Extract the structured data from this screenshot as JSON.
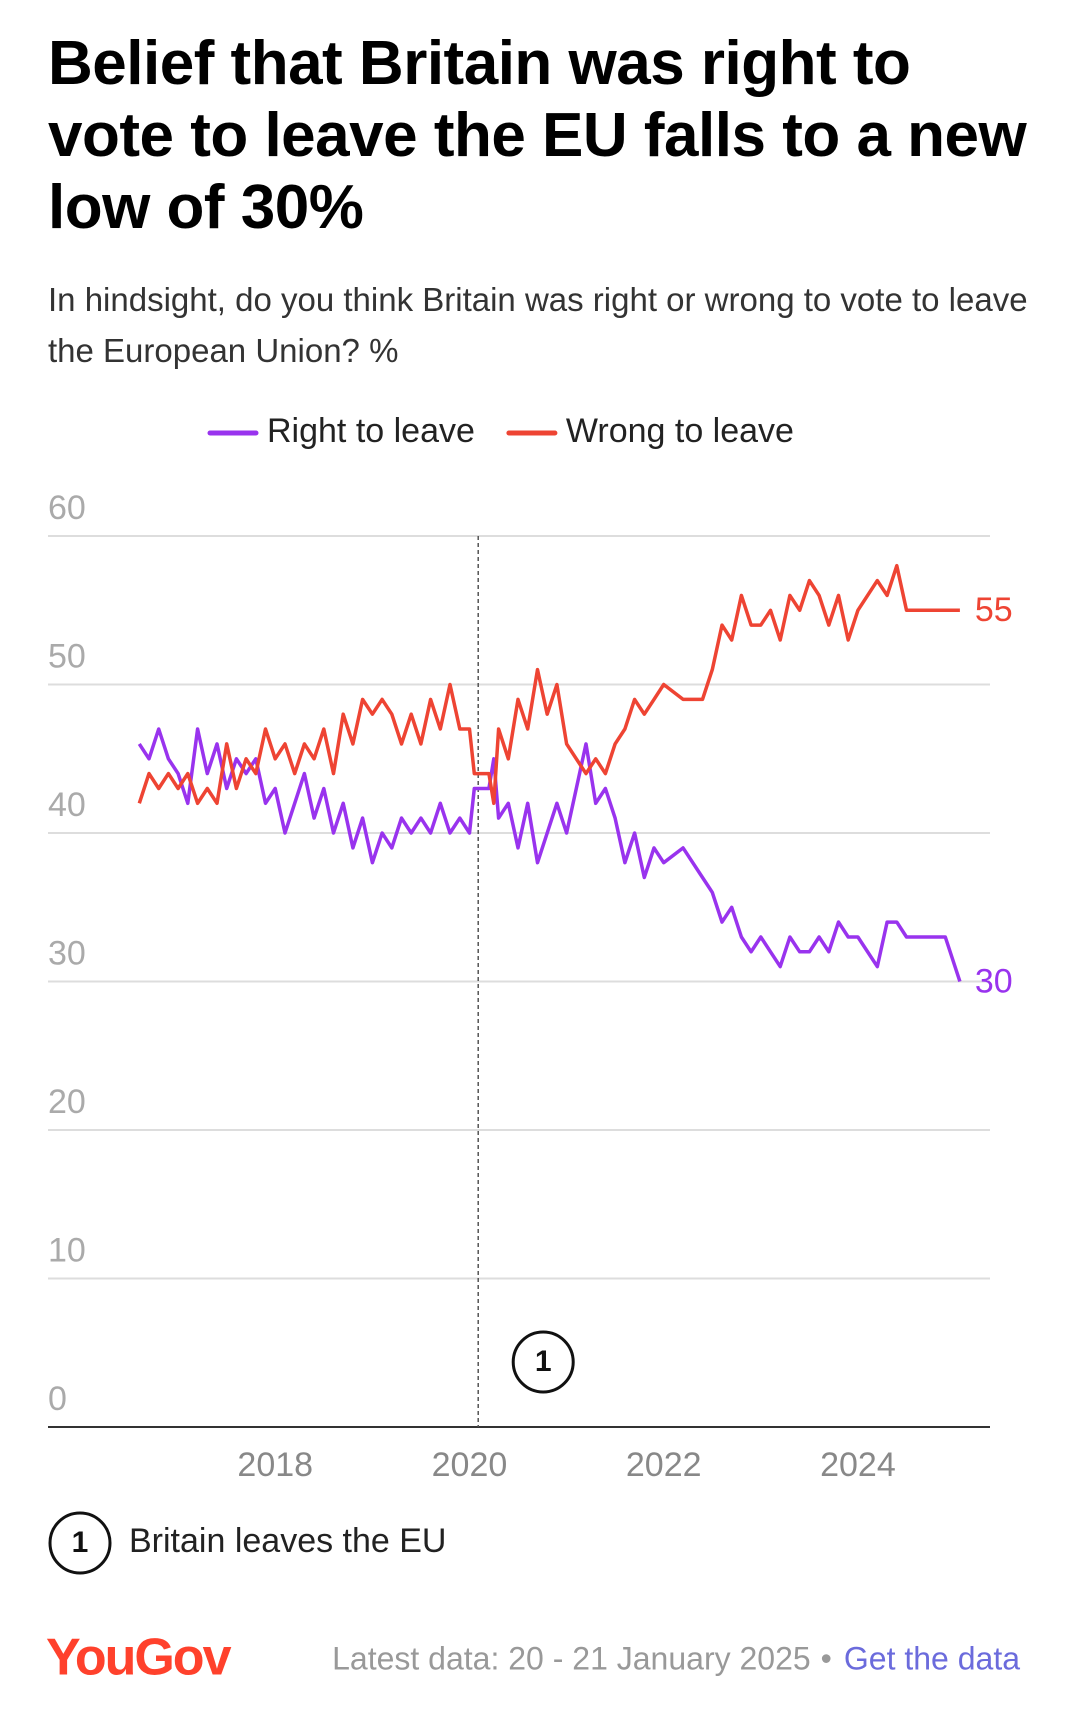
{
  "chart_data": {
    "type": "line",
    "title": "Belief that Britain was right to vote to leave the EU falls to a new low of 30%",
    "subtitle": "In hindsight, do you think Britain was right or wrong to vote to leave the European Union? %",
    "x": [
      2016.6,
      2016.7,
      2016.8,
      2016.9,
      2017.0,
      2017.1,
      2017.2,
      2017.3,
      2017.4,
      2017.5,
      2017.6,
      2017.7,
      2017.8,
      2017.9,
      2018.0,
      2018.1,
      2018.2,
      2018.3,
      2018.4,
      2018.5,
      2018.6,
      2018.7,
      2018.8,
      2018.9,
      2019.0,
      2019.1,
      2019.2,
      2019.3,
      2019.4,
      2019.5,
      2019.6,
      2019.7,
      2019.8,
      2019.9,
      2020.0,
      2020.05,
      2020.2,
      2020.25,
      2020.3,
      2020.4,
      2020.5,
      2020.6,
      2020.7,
      2020.8,
      2020.9,
      2021.0,
      2021.1,
      2021.2,
      2021.3,
      2021.4,
      2021.5,
      2021.6,
      2021.7,
      2021.8,
      2021.9,
      2022.0,
      2022.2,
      2022.4,
      2022.5,
      2022.6,
      2022.7,
      2022.8,
      2022.9,
      2023.0,
      2023.1,
      2023.2,
      2023.3,
      2023.4,
      2023.5,
      2023.6,
      2023.7,
      2023.8,
      2023.9,
      2024.0,
      2024.2,
      2024.3,
      2024.4,
      2024.5,
      2024.7,
      2024.9,
      2025.05
    ],
    "series": [
      {
        "name": "Right to leave",
        "color": "#9933ee",
        "values": [
          46,
          45,
          47,
          45,
          44,
          42,
          47,
          44,
          46,
          43,
          45,
          44,
          45,
          42,
          43,
          40,
          42,
          44,
          41,
          43,
          40,
          42,
          39,
          41,
          38,
          40,
          39,
          41,
          40,
          41,
          40,
          42,
          40,
          41,
          40,
          43,
          43,
          45,
          41,
          42,
          39,
          42,
          38,
          40,
          42,
          40,
          43,
          46,
          42,
          43,
          41,
          38,
          40,
          37,
          39,
          38,
          39,
          37,
          36,
          34,
          35,
          33,
          32,
          33,
          32,
          31,
          33,
          32,
          32,
          33,
          32,
          34,
          33,
          33,
          31,
          34,
          34,
          33,
          33,
          33,
          30
        ]
      },
      {
        "name": "Wrong to leave",
        "color": "#ee4433",
        "values": [
          42,
          44,
          43,
          44,
          43,
          44,
          42,
          43,
          42,
          46,
          43,
          45,
          44,
          47,
          45,
          46,
          44,
          46,
          45,
          47,
          44,
          48,
          46,
          49,
          48,
          49,
          48,
          46,
          48,
          46,
          49,
          47,
          50,
          47,
          47,
          44,
          44,
          42,
          47,
          45,
          49,
          47,
          51,
          48,
          50,
          46,
          45,
          44,
          45,
          44,
          46,
          47,
          49,
          48,
          49,
          50,
          49,
          49,
          51,
          54,
          53,
          56,
          54,
          54,
          55,
          53,
          56,
          55,
          57,
          56,
          54,
          56,
          53,
          55,
          57,
          56,
          58,
          55,
          55,
          55,
          55
        ]
      }
    ],
    "xlim": [
      2015.66,
      2025.36
    ],
    "xticks": [
      2018,
      2020,
      2022,
      2024
    ],
    "ylim": [
      0,
      60
    ],
    "yticks": [
      0,
      10,
      20,
      30,
      40,
      50,
      60
    ],
    "grid": true,
    "legend": "top",
    "annotations": [
      {
        "x": 2020.09,
        "label": "1",
        "text": "Britain leaves the EU"
      }
    ],
    "logo": "YouGov",
    "source": "Latest data: 20 - 21 January 2025",
    "separator": "•",
    "link": "Get the data"
  }
}
